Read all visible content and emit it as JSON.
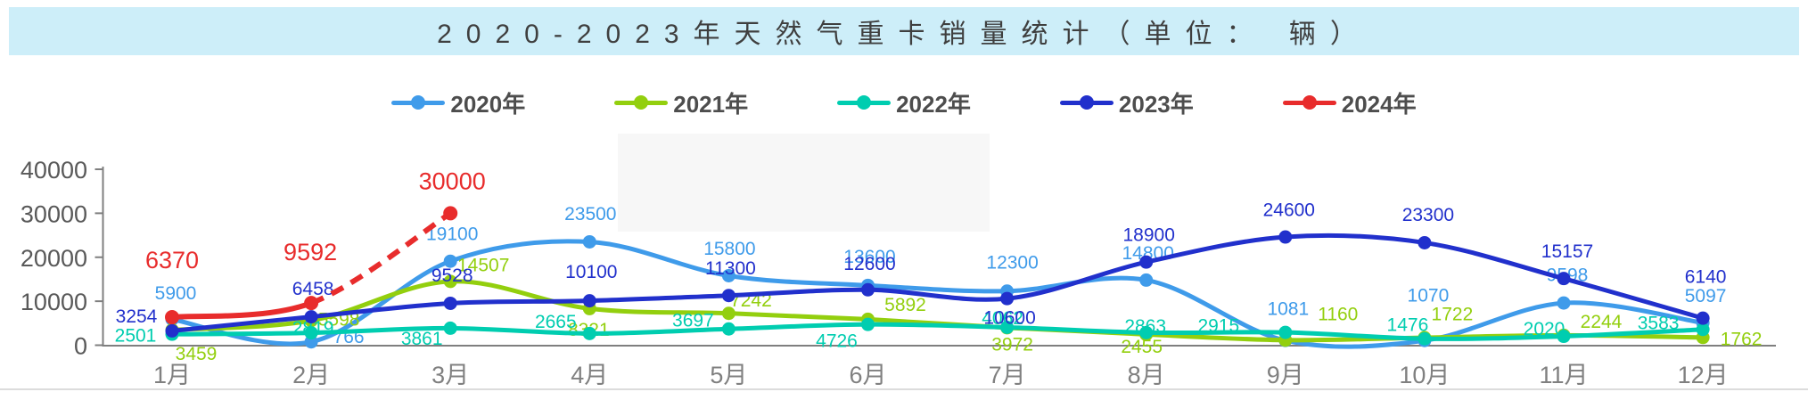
{
  "title": {
    "text": "2020-2023年天然气重卡销量统计（单位： 辆）"
  },
  "colors": {
    "banner_bg": "#cdeef9",
    "axis_line": "#7f7f7f",
    "axis_tick_label": "#595959",
    "month_label": "#808080"
  },
  "legend": {
    "items": [
      {
        "label": "2020年",
        "color": "#3f9bea"
      },
      {
        "label": "2021年",
        "color": "#93cf0e"
      },
      {
        "label": "2022年",
        "color": "#00cdb0"
      },
      {
        "label": "2023年",
        "color": "#2130cc"
      },
      {
        "label": "2024年",
        "color": "#e82c2c"
      }
    ]
  },
  "chart_data": {
    "type": "line",
    "title": "2020-2023年天然气重卡销量统计（单位： 辆）",
    "xlabel": "",
    "ylabel": "",
    "ylim": [
      0,
      40000
    ],
    "yticks": [
      0,
      10000,
      20000,
      30000,
      40000
    ],
    "grid": false,
    "legend_position": "top",
    "smooth": true,
    "categories": [
      "1月",
      "2月",
      "3月",
      "4月",
      "5月",
      "6月",
      "7月",
      "8月",
      "9月",
      "10月",
      "11月",
      "12月"
    ],
    "series": [
      {
        "name": "2020年",
        "color": "#3f9bea",
        "values": [
          5900,
          766,
          19100,
          23500,
          15800,
          13600,
          12300,
          14800,
          1081,
          1070,
          9598,
          5097
        ],
        "label_offsets": [
          [
            4,
            -29
          ],
          [
            42,
            -5
          ],
          [
            2,
            -30
          ],
          [
            1,
            -31
          ],
          [
            1,
            -30
          ],
          [
            2,
            -32
          ],
          [
            6,
            -32
          ],
          [
            2,
            -30
          ],
          [
            3,
            -35
          ],
          [
            4,
            -50
          ],
          [
            4,
            -31
          ],
          [
            3,
            -30
          ]
        ]
      },
      {
        "name": "2021年",
        "color": "#93cf0e",
        "values": [
          3459,
          5598,
          14507,
          8321,
          7242,
          5892,
          3972,
          2455,
          1160,
          1722,
          2244,
          1762
        ],
        "label_offsets": [
          [
            27,
            27
          ],
          [
            31,
            -1
          ],
          [
            37,
            -18
          ],
          [
            -1,
            24
          ],
          [
            25,
            -14
          ],
          [
            42,
            -16
          ],
          [
            6,
            19
          ],
          [
            -5,
            14
          ],
          [
            59,
            -29
          ],
          [
            31,
            -26
          ],
          [
            42,
            -15
          ],
          [
            43,
            2
          ]
        ]
      },
      {
        "name": "2022年",
        "color": "#00cdb0",
        "values": [
          2501,
          2819,
          3861,
          2665,
          3697,
          4726,
          4062,
          2863,
          2915,
          1476,
          2020,
          3583
        ],
        "label_offsets": [
          [
            -41,
            2
          ],
          [
            2,
            -5
          ],
          [
            -32,
            12
          ],
          [
            -38,
            -13
          ],
          [
            -40,
            -9
          ],
          [
            -35,
            19
          ],
          [
            -5,
            -10
          ],
          [
            -1,
            -7
          ],
          [
            -75,
            -7
          ],
          [
            -19,
            -15
          ],
          [
            -22,
            -8
          ],
          [
            -50,
            -7
          ]
        ]
      },
      {
        "name": "2023年",
        "color": "#2130cc",
        "values": [
          3254,
          6458,
          9528,
          10100,
          11300,
          12600,
          10600,
          18900,
          24600,
          23300,
          15157,
          6140
        ],
        "label_offsets": [
          [
            -40,
            -16
          ],
          [
            2,
            -31
          ],
          [
            2,
            -31
          ],
          [
            2,
            -32
          ],
          [
            2,
            -30
          ],
          [
            2,
            -29
          ],
          [
            3,
            22
          ],
          [
            3,
            -30
          ],
          [
            4,
            -30
          ],
          [
            4,
            -31
          ],
          [
            4,
            -30
          ],
          [
            3,
            -46
          ]
        ]
      },
      {
        "name": "2024年",
        "color": "#e82c2c",
        "values": [
          6370,
          9592,
          30000,
          null,
          null,
          null,
          null,
          null,
          null,
          null,
          null,
          null
        ],
        "dashed_from_index": 1,
        "line_width": 6,
        "dot_radius": 8,
        "label_size": 27,
        "label_offsets": [
          [
            0,
            -64
          ],
          [
            -1,
            -57
          ],
          [
            2,
            -36
          ]
        ]
      }
    ]
  }
}
